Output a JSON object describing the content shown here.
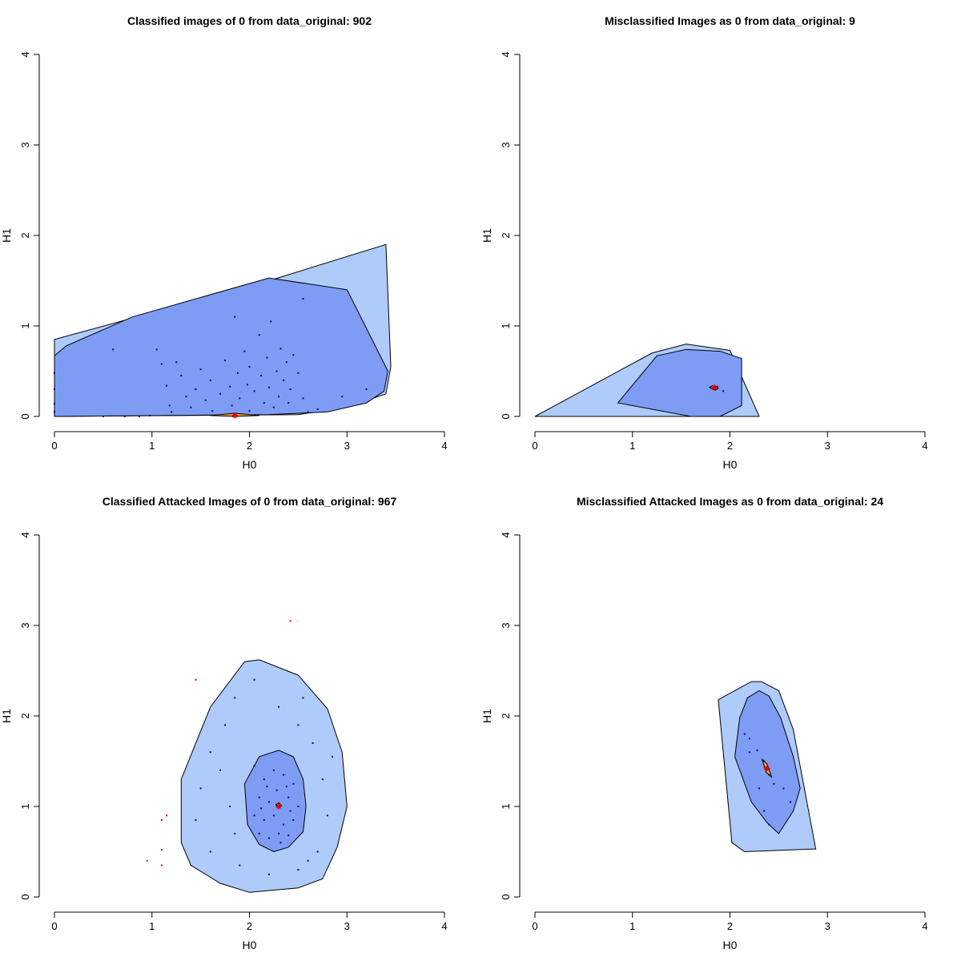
{
  "chart_data": [
    {
      "type": "scatter",
      "title": "Classified images of 0 from data_original: 902",
      "xlabel": "H0",
      "ylabel": "H1",
      "xlim": [
        0,
        4
      ],
      "ylim": [
        0,
        4
      ],
      "xticks": [
        "0",
        "1",
        "2",
        "3",
        "4"
      ],
      "yticks": [
        "0",
        "1",
        "2",
        "3",
        "4"
      ],
      "regions": [
        {
          "level": "outer",
          "color": "#aecbfa",
          "points": [
            [
              0,
              0.85
            ],
            [
              2.2,
              1.5
            ],
            [
              3.4,
              1.9
            ],
            [
              3.45,
              0.55
            ],
            [
              3.4,
              0.25
            ],
            [
              3,
              0.1
            ],
            [
              2.5,
              0.02
            ],
            [
              0,
              0
            ]
          ]
        },
        {
          "level": "middle",
          "color": "#7f9cf5",
          "points": [
            [
              0,
              0.67
            ],
            [
              0.12,
              0.78
            ],
            [
              0.8,
              1.1
            ],
            [
              2.2,
              1.53
            ],
            [
              3,
              1.4
            ],
            [
              3.42,
              0.5
            ],
            [
              3.38,
              0.28
            ],
            [
              3.2,
              0.15
            ],
            [
              2.8,
              0.05
            ],
            [
              2.2,
              0.02
            ],
            [
              0,
              0
            ]
          ]
        },
        {
          "level": "core",
          "color": "#f0a030",
          "points": [
            [
              1.6,
              0.01
            ],
            [
              1.85,
              0.035
            ],
            [
              2.1,
              0.01
            ],
            [
              1.85,
              0
            ]
          ]
        }
      ],
      "median": [
        1.85,
        0.01
      ],
      "points": [
        [
          0,
          0.48
        ],
        [
          0,
          0.3
        ],
        [
          0,
          0.14
        ],
        [
          0,
          0.05
        ],
        [
          0.5,
          0
        ],
        [
          0.6,
          0.74
        ],
        [
          0.72,
          0
        ],
        [
          0.87,
          0
        ],
        [
          0.98,
          0.01
        ],
        [
          1.05,
          0.74
        ],
        [
          1.1,
          0.58
        ],
        [
          1.15,
          0.34
        ],
        [
          1.18,
          0.12
        ],
        [
          1.2,
          0.05
        ],
        [
          1.25,
          0.6
        ],
        [
          1.3,
          0.45
        ],
        [
          1.35,
          0.22
        ],
        [
          1.4,
          0.1
        ],
        [
          1.45,
          0.3
        ],
        [
          1.5,
          0.52
        ],
        [
          1.55,
          0.18
        ],
        [
          1.6,
          0.4
        ],
        [
          1.62,
          0.06
        ],
        [
          1.7,
          0.25
        ],
        [
          1.75,
          0.62
        ],
        [
          1.8,
          0.33
        ],
        [
          1.82,
          0.12
        ],
        [
          1.85,
          1.1
        ],
        [
          1.88,
          0.48
        ],
        [
          1.9,
          0.2
        ],
        [
          1.95,
          0.72
        ],
        [
          1.98,
          0.35
        ],
        [
          2,
          0.06
        ],
        [
          2,
          0.55
        ],
        [
          2.05,
          0.28
        ],
        [
          2.1,
          0.9
        ],
        [
          2.12,
          0.45
        ],
        [
          2.15,
          0.15
        ],
        [
          2.18,
          0.65
        ],
        [
          2.2,
          0.32
        ],
        [
          2.22,
          1.05
        ],
        [
          2.25,
          0.1
        ],
        [
          2.28,
          0.5
        ],
        [
          2.3,
          0.22
        ],
        [
          2.32,
          0.75
        ],
        [
          2.35,
          0.4
        ],
        [
          2.38,
          0.6
        ],
        [
          2.4,
          0.15
        ],
        [
          2.42,
          0.3
        ],
        [
          2.45,
          0.68
        ],
        [
          2.5,
          0.48
        ],
        [
          2.55,
          0.2
        ],
        [
          2.6,
          0.05
        ],
        [
          2.55,
          1.3
        ],
        [
          3.2,
          0.3
        ],
        [
          2.95,
          0.22
        ],
        [
          2.7,
          0.08
        ]
      ]
    },
    {
      "type": "scatter",
      "title": "Misclassified Images as 0 from data_original: 9",
      "xlabel": "H0",
      "ylabel": "H1",
      "xlim": [
        0,
        4
      ],
      "ylim": [
        0,
        4
      ],
      "xticks": [
        "0",
        "1",
        "2",
        "3",
        "4"
      ],
      "yticks": [
        "0",
        "1",
        "2",
        "3",
        "4"
      ],
      "regions": [
        {
          "level": "outer",
          "color": "#aecbfa",
          "points": [
            [
              0,
              0
            ],
            [
              1.2,
              0.7
            ],
            [
              1.55,
              0.8
            ],
            [
              2,
              0.73
            ],
            [
              2.3,
              0
            ],
            [
              0,
              0
            ]
          ]
        },
        {
          "level": "middle",
          "color": "#7f9cf5",
          "points": [
            [
              0.85,
              0.15
            ],
            [
              1.25,
              0.67
            ],
            [
              1.55,
              0.74
            ],
            [
              1.9,
              0.72
            ],
            [
              2.12,
              0.64
            ],
            [
              2.12,
              0.12
            ],
            [
              1.9,
              0
            ],
            [
              1.6,
              0
            ],
            [
              0.85,
              0.15
            ]
          ]
        },
        {
          "level": "core",
          "color": "#f0a030",
          "points": [
            [
              1.79,
              0.32
            ],
            [
              1.82,
              0.34
            ],
            [
              1.88,
              0.31
            ],
            [
              1.85,
              0.29
            ]
          ]
        }
      ],
      "median": [
        1.84,
        0.32
      ],
      "points": [
        [
          1.8,
          0.32
        ],
        [
          1.83,
          0.3
        ],
        [
          1.87,
          0.33
        ],
        [
          1.85,
          0.31
        ],
        [
          1.93,
          0.28
        ]
      ]
    },
    {
      "type": "scatter",
      "title": "Classified Attacked Images of 0 from data_original: 967",
      "xlabel": "H0",
      "ylabel": "H1",
      "xlim": [
        0,
        4
      ],
      "ylim": [
        0,
        4
      ],
      "xticks": [
        "0",
        "1",
        "2",
        "3",
        "4"
      ],
      "yticks": [
        "0",
        "1",
        "2",
        "3",
        "4"
      ],
      "regions": [
        {
          "level": "outer",
          "color": "#aecbfa",
          "points": [
            [
              1.3,
              1.3
            ],
            [
              1.6,
              2.1
            ],
            [
              1.95,
              2.6
            ],
            [
              2.1,
              2.62
            ],
            [
              2.5,
              2.45
            ],
            [
              2.8,
              2.08
            ],
            [
              2.95,
              1.6
            ],
            [
              3,
              1
            ],
            [
              2.9,
              0.55
            ],
            [
              2.75,
              0.2
            ],
            [
              2.5,
              0.1
            ],
            [
              2,
              0.05
            ],
            [
              1.7,
              0.15
            ],
            [
              1.4,
              0.35
            ],
            [
              1.3,
              0.6
            ],
            [
              1.3,
              1.3
            ]
          ]
        },
        {
          "level": "middle",
          "color": "#7f9cf5",
          "points": [
            [
              1.95,
              1.25
            ],
            [
              2.1,
              1.55
            ],
            [
              2.3,
              1.62
            ],
            [
              2.45,
              1.55
            ],
            [
              2.55,
              1.3
            ],
            [
              2.58,
              1
            ],
            [
              2.55,
              0.72
            ],
            [
              2.4,
              0.55
            ],
            [
              2.25,
              0.5
            ],
            [
              2.1,
              0.58
            ],
            [
              1.98,
              0.8
            ],
            [
              1.95,
              1.25
            ]
          ]
        },
        {
          "level": "core",
          "color": "#f0a030",
          "points": [
            [
              2.27,
              1.02
            ],
            [
              2.3,
              1.04
            ],
            [
              2.33,
              1.01
            ],
            [
              2.3,
              0.98
            ]
          ]
        }
      ],
      "median": [
        2.3,
        1.0
      ],
      "points": [
        [
          2.05,
          1.45
        ],
        [
          2.15,
          1.3
        ],
        [
          2.25,
          1.4
        ],
        [
          2.35,
          1.35
        ],
        [
          2.45,
          1.25
        ],
        [
          2.1,
          1.1
        ],
        [
          2.2,
          1.05
        ],
        [
          2.4,
          1.1
        ],
        [
          2.5,
          1
        ],
        [
          2.05,
          0.9
        ],
        [
          2.15,
          0.85
        ],
        [
          2.25,
          0.9
        ],
        [
          2.35,
          0.8
        ],
        [
          2.45,
          0.85
        ],
        [
          2.1,
          0.7
        ],
        [
          2.2,
          0.65
        ],
        [
          2.3,
          0.7
        ],
        [
          2.4,
          0.68
        ],
        [
          2.18,
          1.22
        ],
        [
          2.28,
          1.18
        ],
        [
          2.38,
          1.22
        ],
        [
          2.12,
          0.98
        ],
        [
          2.42,
          0.95
        ],
        [
          2.32,
          0.6
        ],
        [
          1.6,
          1.6
        ],
        [
          1.75,
          1.9
        ],
        [
          1.85,
          2.2
        ],
        [
          2.05,
          2.4
        ],
        [
          2.3,
          2.1
        ],
        [
          2.5,
          1.9
        ],
        [
          2.65,
          1.7
        ],
        [
          2.75,
          1.3
        ],
        [
          2.8,
          0.9
        ],
        [
          2.7,
          0.5
        ],
        [
          2.5,
          0.3
        ],
        [
          2.2,
          0.25
        ],
        [
          1.9,
          0.35
        ],
        [
          1.6,
          0.5
        ],
        [
          1.45,
          0.85
        ],
        [
          1.5,
          1.2
        ],
        [
          1.7,
          1.4
        ],
        [
          1.8,
          1
        ],
        [
          1.85,
          0.7
        ],
        [
          2.6,
          0.4
        ],
        [
          2.85,
          1.55
        ],
        [
          2.55,
          2.2
        ]
      ],
      "outliers": [
        [
          0.95,
          0.4
        ],
        [
          1.1,
          0.35
        ],
        [
          1.1,
          0.52
        ],
        [
          1.1,
          0.85
        ],
        [
          1.15,
          0.9
        ],
        [
          1.45,
          2.4
        ],
        [
          2.42,
          3.05
        ]
      ]
    },
    {
      "type": "scatter",
      "title": "Misclassified Attacked Images as 0 from data_original: 24",
      "xlabel": "H0",
      "ylabel": "H1",
      "xlim": [
        0,
        4
      ],
      "ylim": [
        0,
        4
      ],
      "xticks": [
        "0",
        "1",
        "2",
        "3",
        "4"
      ],
      "yticks": [
        "0",
        "1",
        "2",
        "3",
        "4"
      ],
      "regions": [
        {
          "level": "outer",
          "color": "#aecbfa",
          "points": [
            [
              1.88,
              2.18
            ],
            [
              2.22,
              2.38
            ],
            [
              2.32,
              2.38
            ],
            [
              2.5,
              2.28
            ],
            [
              2.65,
              1.85
            ],
            [
              2.88,
              0.53
            ],
            [
              2.15,
              0.5
            ],
            [
              2.02,
              0.6
            ],
            [
              1.88,
              2.18
            ]
          ]
        },
        {
          "level": "middle",
          "color": "#7f9cf5",
          "points": [
            [
              2.05,
              1.55
            ],
            [
              2.1,
              1.98
            ],
            [
              2.18,
              2.2
            ],
            [
              2.3,
              2.28
            ],
            [
              2.4,
              2.22
            ],
            [
              2.52,
              1.98
            ],
            [
              2.65,
              1.55
            ],
            [
              2.72,
              1.2
            ],
            [
              2.65,
              0.95
            ],
            [
              2.5,
              0.7
            ],
            [
              2.38,
              0.82
            ],
            [
              2.22,
              1.05
            ],
            [
              2.05,
              1.55
            ]
          ]
        },
        {
          "level": "core",
          "color": "#f0a030",
          "points": [
            [
              2.33,
              1.52
            ],
            [
              2.38,
              1.47
            ],
            [
              2.43,
              1.32
            ],
            [
              2.37,
              1.38
            ],
            [
              2.33,
              1.52
            ]
          ]
        }
      ],
      "median": [
        2.38,
        1.42
      ],
      "points": [
        [
          2.15,
          1.8
        ],
        [
          2.2,
          1.75
        ],
        [
          2.28,
          1.62
        ],
        [
          2.35,
          1.5
        ],
        [
          2.4,
          1.35
        ],
        [
          2.45,
          1.25
        ],
        [
          2.55,
          1.2
        ],
        [
          2.62,
          1.05
        ],
        [
          2.35,
          0.95
        ],
        [
          2.4,
          0.8
        ],
        [
          2.2,
          1.6
        ],
        [
          2.3,
          1.2
        ]
      ]
    }
  ]
}
